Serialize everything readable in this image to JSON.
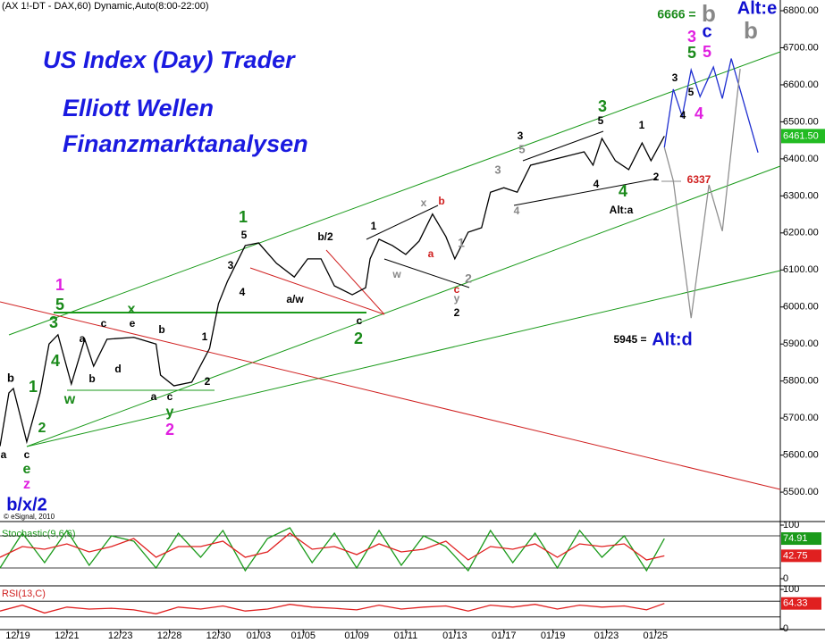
{
  "chart_data": [
    {
      "type": "line",
      "title": "(AX 1!-DT - DAX,60) Dynamic,Auto(8:00-22:00)",
      "watermark": [
        "US Index (Day) Trader",
        "Elliott Wellen",
        "Finanzmarktanalysen"
      ],
      "source": "© eSignal, 2010",
      "xlim": [
        0,
        175
      ],
      "ylim": [
        5423,
        6829
      ],
      "xticks": [
        {
          "value": 4,
          "label": "12/19"
        },
        {
          "value": 15,
          "label": "12/21"
        },
        {
          "value": 27,
          "label": "12/23"
        },
        {
          "value": 38,
          "label": "12/28"
        },
        {
          "value": 49,
          "label": "12/30"
        },
        {
          "value": 58,
          "label": "01/03"
        },
        {
          "value": 68,
          "label": "01/05"
        },
        {
          "value": 80,
          "label": "01/09"
        },
        {
          "value": 91,
          "label": "01/11"
        },
        {
          "value": 102,
          "label": "01/13"
        },
        {
          "value": 113,
          "label": "01/17"
        },
        {
          "value": 124,
          "label": "01/19"
        },
        {
          "value": 136,
          "label": "01/23"
        },
        {
          "value": 147,
          "label": "01/25"
        }
      ],
      "yticks": [
        {
          "value": 5500,
          "label": "5500.00"
        },
        {
          "value": 5600,
          "label": "5600.00"
        },
        {
          "value": 5700,
          "label": "5700.00"
        },
        {
          "value": 5800,
          "label": "5800.00"
        },
        {
          "value": 5900,
          "label": "5900.00"
        },
        {
          "value": 6000,
          "label": "6000.00"
        },
        {
          "value": 6100,
          "label": "6100.00"
        },
        {
          "value": 6200,
          "label": "6200.00"
        },
        {
          "value": 6300,
          "label": "6300.00"
        },
        {
          "value": 6400,
          "label": "6400.00"
        },
        {
          "value": 6500,
          "label": "6500.00"
        },
        {
          "value": 6600,
          "label": "6600.00"
        },
        {
          "value": 6700,
          "label": "6700.00"
        },
        {
          "value": 6800,
          "label": "6800.00"
        }
      ],
      "series": [
        {
          "color": "#000000",
          "x": [
            0,
            2,
            3,
            6,
            9,
            11,
            13,
            16,
            19,
            21,
            24,
            30,
            35,
            36,
            39,
            43,
            47,
            49,
            51,
            55,
            58,
            62,
            66,
            69,
            72,
            75,
            79,
            82,
            83,
            85,
            88,
            91,
            94,
            97,
            100,
            102,
            105,
            108,
            110,
            113,
            116,
            119,
            123,
            127,
            131,
            133,
            135,
            138,
            141,
            144,
            146,
            149
          ],
          "values": [
            5624,
            5768,
            5780,
            5636,
            5768,
            5900,
            5925,
            5792,
            5913,
            5840,
            5913,
            5918,
            5900,
            5816,
            5787,
            5797,
            5888,
            6009,
            6069,
            6166,
            6173,
            6118,
            6081,
            6130,
            6130,
            6057,
            6033,
            6052,
            6130,
            6183,
            6166,
            6142,
            6178,
            6251,
            6190,
            6130,
            6202,
            6214,
            6310,
            6322,
            6310,
            6383,
            6395,
            6407,
            6419,
            6383,
            6455,
            6395,
            6371,
            6443,
            6395,
            6461.5
          ]
        },
        {
          "color": "#1f2fd0",
          "x": [
            149,
            151,
            153,
            155,
            157,
            160,
            162,
            164,
            170
          ],
          "values": [
            6431,
            6588,
            6515,
            6640,
            6568,
            6648,
            6563,
            6671,
            6417
          ]
        },
        {
          "color": "#909090",
          "x": [
            149,
            151,
            155,
            159,
            162,
            166
          ],
          "values": [
            6431,
            6341,
            5970,
            6330,
            6205,
            6643
          ]
        }
      ],
      "price_tag": {
        "value": 6461.5,
        "label": "6461.50"
      },
      "annotations": [
        "b",
        "1",
        "2",
        "a",
        "c",
        "e",
        "z",
        "b/x/2",
        "3",
        "4",
        "5",
        "1",
        "w",
        "a",
        "b",
        "c",
        "d",
        "x",
        "e",
        "b",
        "a",
        "c",
        "y",
        "2",
        "2",
        "1",
        "3",
        "4",
        "5",
        "1",
        "a/w",
        "b/2",
        "c",
        "2",
        "1",
        "w",
        "x",
        "b",
        "a",
        "1",
        "c",
        "2",
        "y",
        "2",
        "3",
        "4",
        "3",
        "5",
        "Alt:a",
        "4",
        "4",
        "3",
        "5",
        "1",
        "2",
        "6337",
        "3",
        "4",
        "4",
        "5",
        "5",
        "5",
        "3",
        "c",
        "b",
        "6666 =",
        "b",
        "Alt:e",
        "5945 =",
        "Alt:d"
      ]
    },
    {
      "type": "line",
      "title": "Stochastic(9,6,6)",
      "ylim": [
        0,
        100
      ],
      "yticks": [
        0,
        100
      ],
      "levels": [
        80,
        20
      ],
      "x": [
        0,
        5,
        10,
        15,
        20,
        25,
        30,
        35,
        40,
        45,
        50,
        55,
        60,
        65,
        70,
        75,
        80,
        85,
        90,
        95,
        100,
        105,
        110,
        115,
        120,
        125,
        130,
        135,
        140,
        145,
        149
      ],
      "series": [
        {
          "color": "#1a9a1a",
          "values": [
            20,
            85,
            30,
            90,
            25,
            80,
            70,
            20,
            85,
            40,
            90,
            15,
            75,
            95,
            30,
            85,
            20,
            90,
            25,
            80,
            60,
            15,
            90,
            30,
            85,
            20,
            90,
            40,
            80,
            15,
            74.91
          ]
        },
        {
          "color": "#e02020",
          "values": [
            40,
            60,
            55,
            65,
            50,
            60,
            75,
            40,
            60,
            60,
            70,
            40,
            50,
            85,
            55,
            60,
            45,
            65,
            50,
            55,
            70,
            35,
            60,
            55,
            65,
            40,
            65,
            60,
            65,
            35,
            42.75
          ]
        }
      ]
    },
    {
      "type": "line",
      "title": "RSI(13,C)",
      "ylim": [
        0,
        100
      ],
      "yticks": [
        0,
        100
      ],
      "levels": [
        70,
        30
      ],
      "x": [
        0,
        5,
        10,
        15,
        20,
        25,
        30,
        35,
        40,
        45,
        50,
        55,
        60,
        65,
        70,
        75,
        80,
        85,
        90,
        95,
        100,
        105,
        110,
        115,
        120,
        125,
        130,
        135,
        140,
        145,
        149
      ],
      "series": [
        {
          "color": "#e02020",
          "values": [
            45,
            60,
            40,
            55,
            50,
            52,
            48,
            38,
            55,
            50,
            58,
            45,
            50,
            62,
            55,
            52,
            48,
            60,
            50,
            55,
            58,
            45,
            60,
            55,
            62,
            50,
            60,
            55,
            58,
            48,
            64.33
          ]
        }
      ]
    }
  ]
}
